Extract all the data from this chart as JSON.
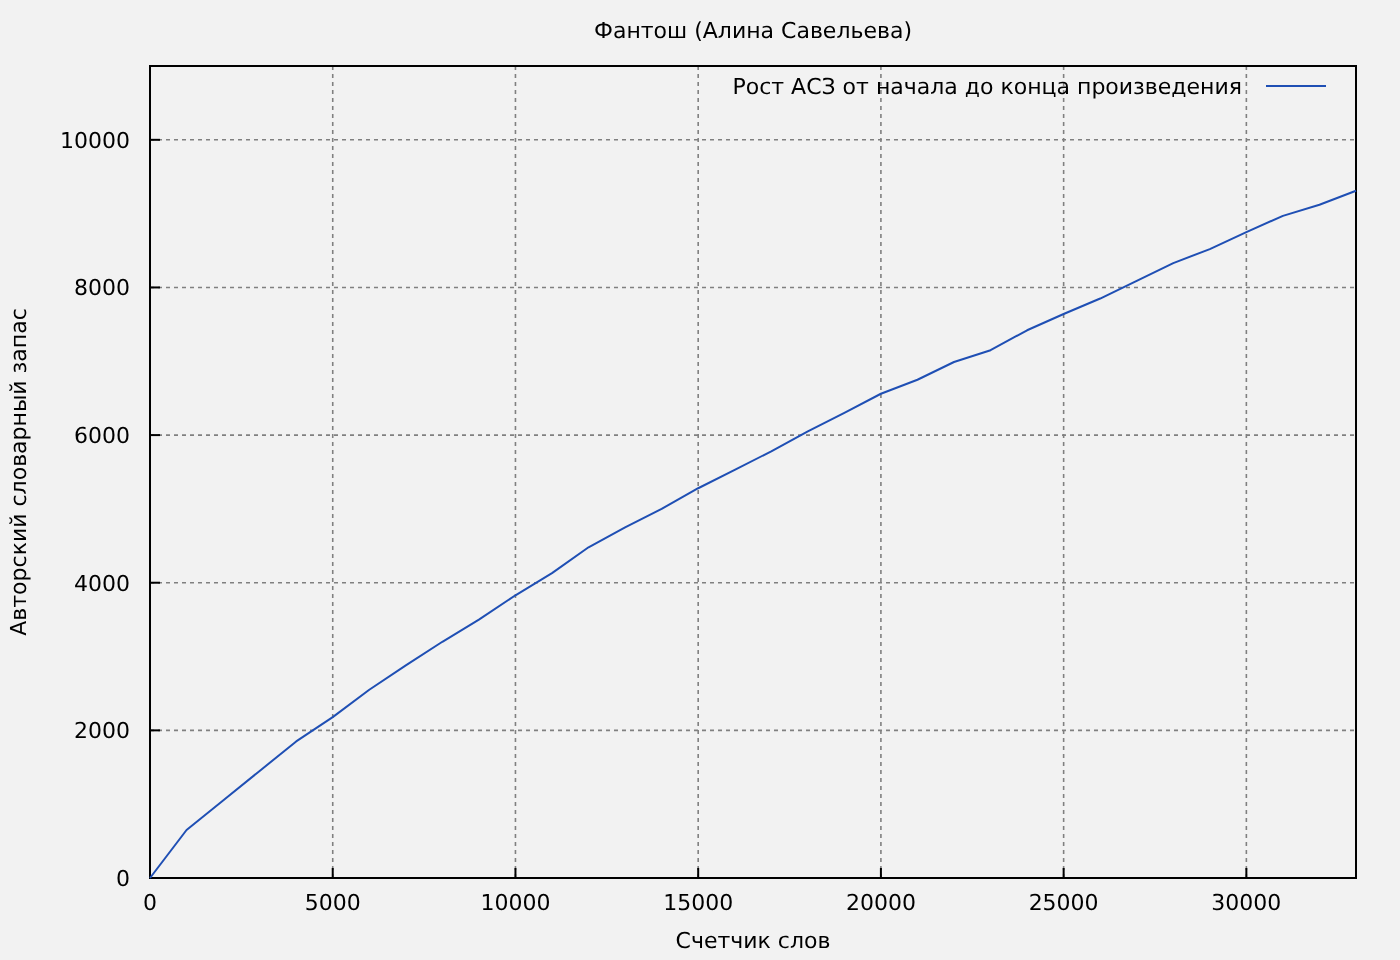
{
  "chart_data": {
    "type": "line",
    "title": "Фантош (Алина Савельева)",
    "xlabel": "Счетчик слов",
    "ylabel": "Авторский словарный запас",
    "x": [
      0,
      1000,
      2000,
      3000,
      4000,
      5000,
      6000,
      7000,
      8000,
      9000,
      10000,
      11000,
      12000,
      13000,
      14000,
      15000,
      16000,
      17000,
      18000,
      19000,
      20000,
      21000,
      22000,
      23000,
      24000,
      25000,
      26000,
      27000,
      28000,
      29000,
      30000,
      31000,
      32000,
      33000
    ],
    "series": [
      {
        "name": "Рост АСЗ от начала до конца произведения",
        "color": "#1f4fb4",
        "values": [
          0,
          650,
          1050,
          1450,
          1850,
          2180,
          2550,
          2880,
          3200,
          3500,
          3830,
          4130,
          4480,
          4750,
          5000,
          5280,
          5530,
          5780,
          6050,
          6300,
          6560,
          6750,
          6990,
          7150,
          7420,
          7640,
          7850,
          8090,
          8330,
          8520,
          8750,
          8970,
          9120,
          9310
        ]
      }
    ],
    "xlim": [
      0,
      33000
    ],
    "xticks": [
      0,
      5000,
      10000,
      15000,
      20000,
      25000,
      30000
    ],
    "ylim": [
      0,
      11000
    ],
    "yticks": [
      0,
      2000,
      4000,
      6000,
      8000,
      10000
    ],
    "grid": true,
    "legend": "top right",
    "line_style": "solid"
  }
}
